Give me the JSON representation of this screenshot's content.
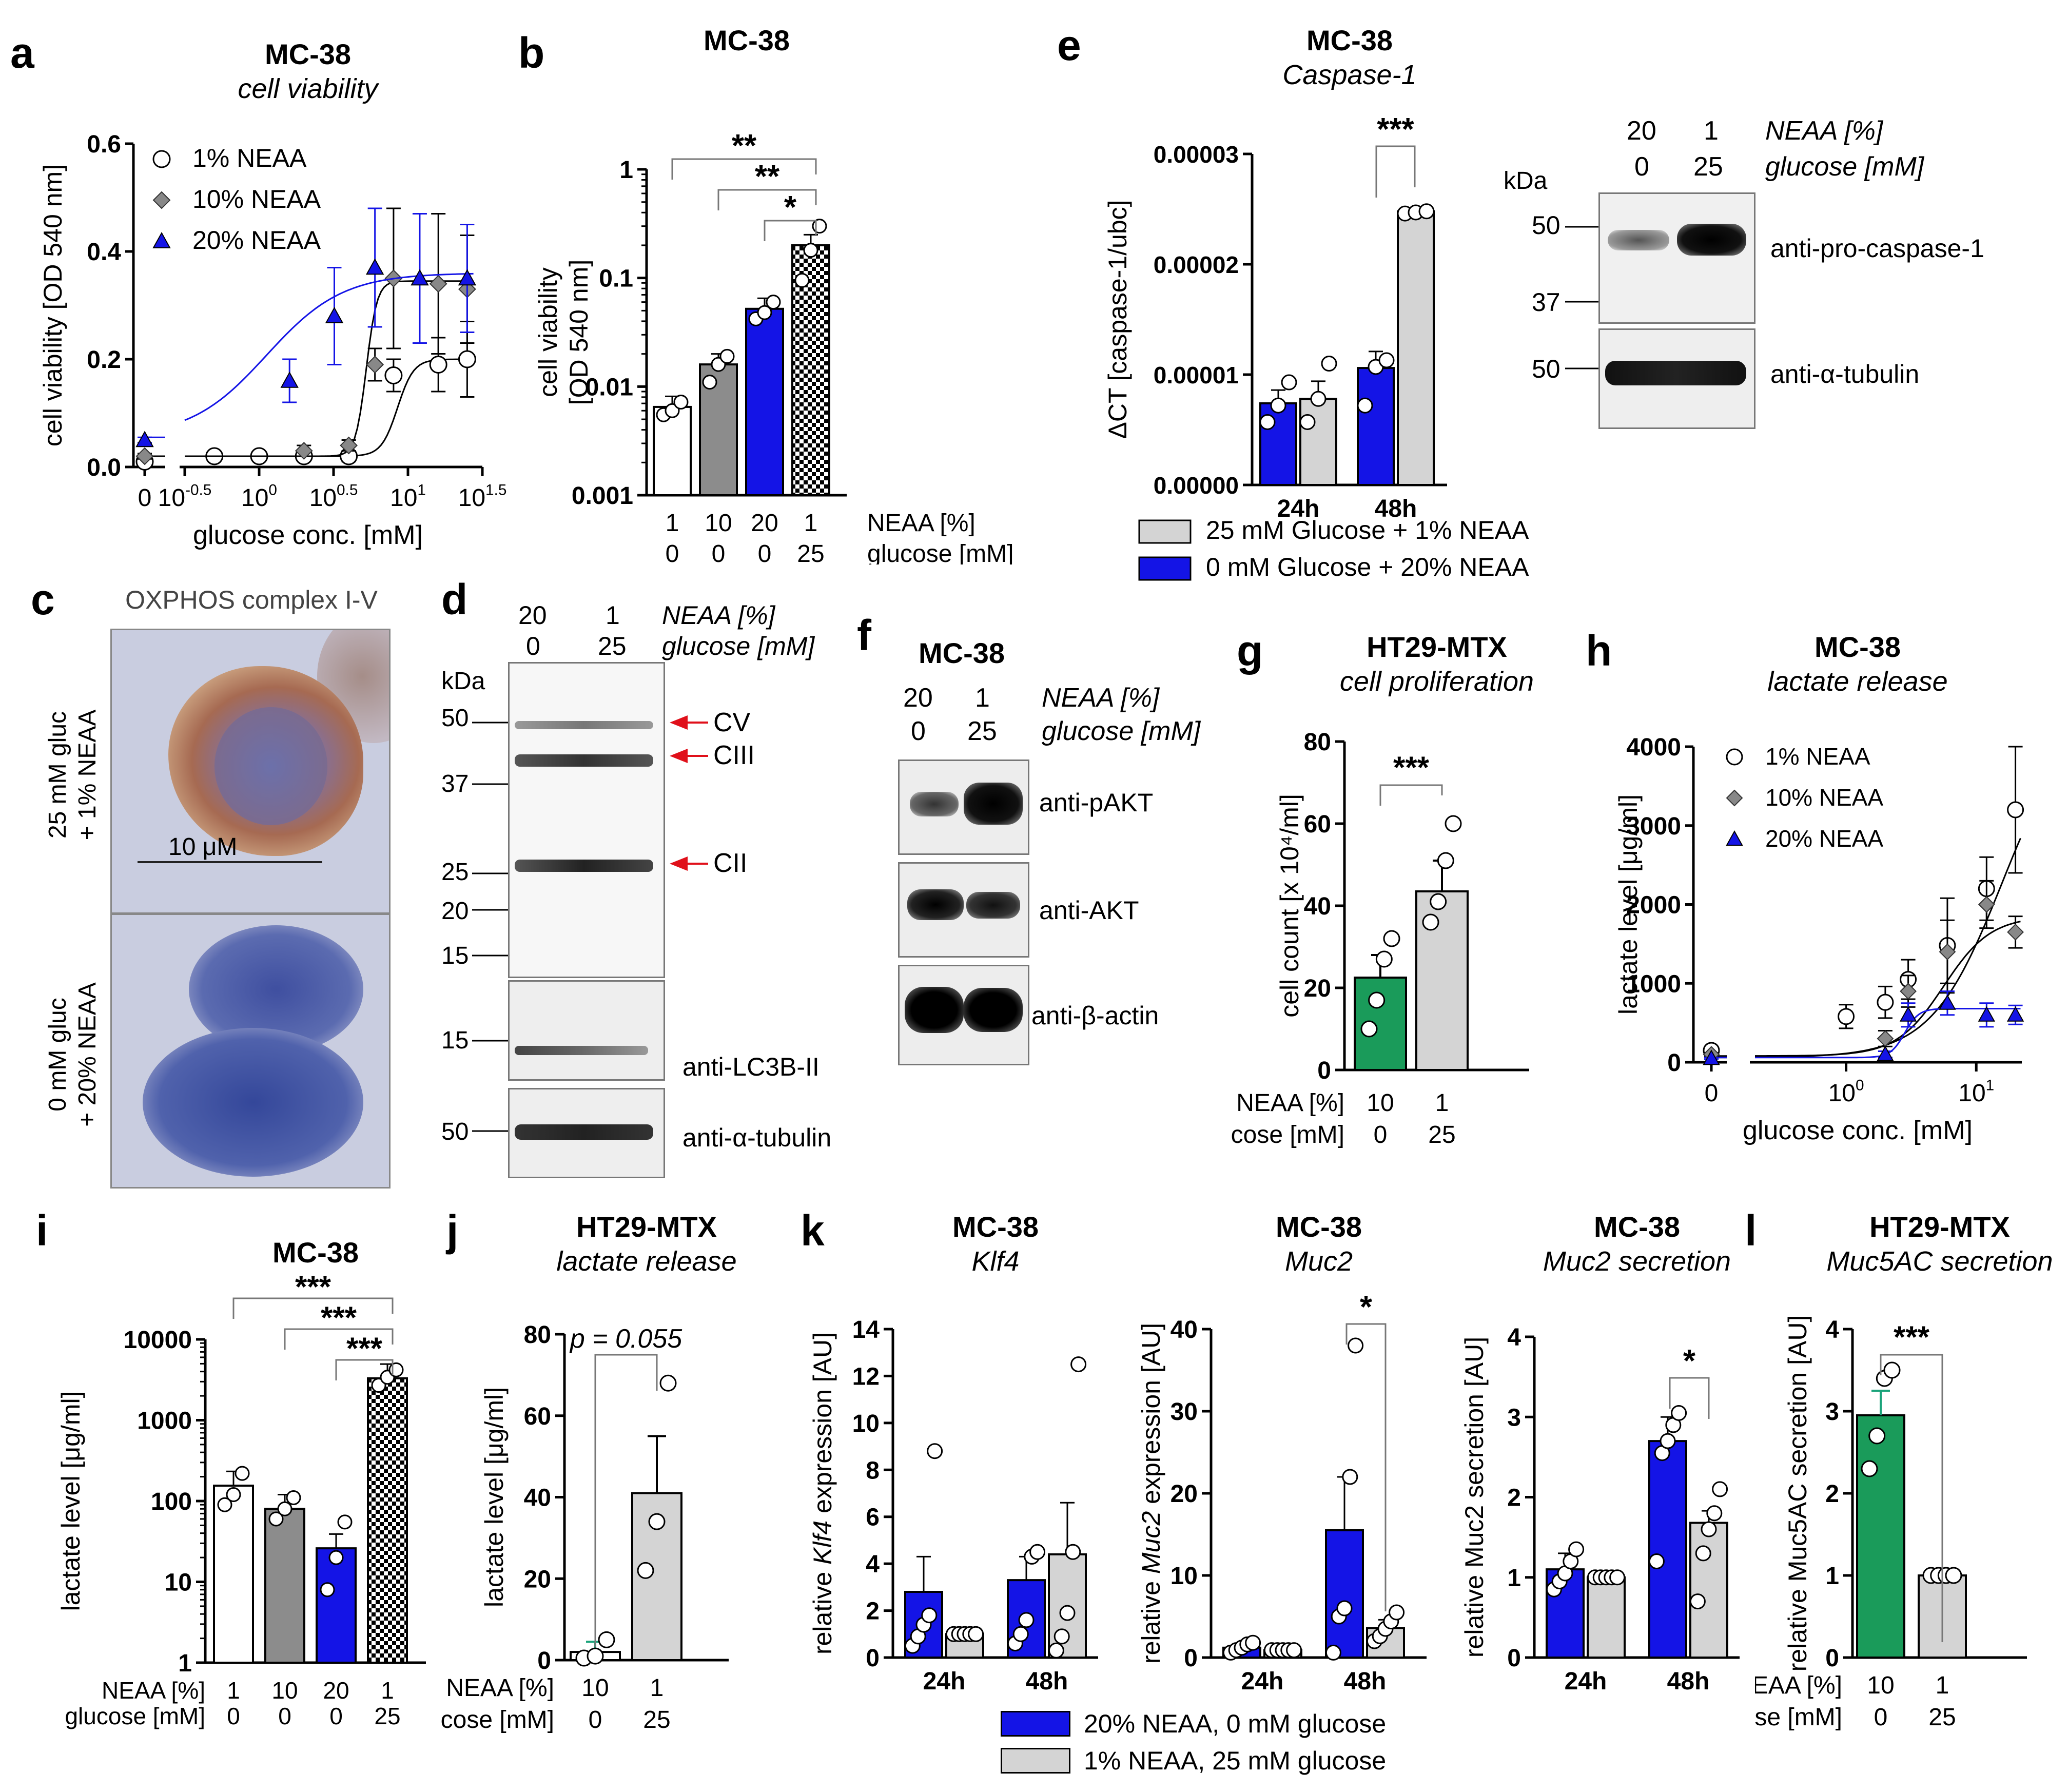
{
  "colors": {
    "white": "#ffffff",
    "gray": "#8c8c8c",
    "blue": "#1414e6",
    "light": "#d4d4d4",
    "green": "#1a9b5a",
    "teal": "#1aa37a",
    "red": "#e0101a",
    "axis": "#000000"
  },
  "labels": {
    "a": "a",
    "b": "b",
    "c": "c",
    "d": "d",
    "e": "e",
    "f": "f",
    "g": "g",
    "h": "h",
    "i": "i",
    "j": "j",
    "k": "k",
    "l": "l"
  },
  "chart_data": [
    {
      "id": "a",
      "type": "line",
      "title": "MC-38",
      "subtitle": "cell viability",
      "xlabel": "glucose conc. [mM]",
      "ylabel": "cell viability [OD 540 nm]",
      "xticks": [
        "0",
        "10^-0.5",
        "10^0",
        "10^0.5",
        "10^1",
        "10^1.5"
      ],
      "yticks": [
        "0.0",
        "0.2",
        "0.4",
        "0.6"
      ],
      "ylim": [
        0,
        0.6
      ],
      "xlim_log": [
        -0.5,
        1.5
      ],
      "series": [
        {
          "name": "1% NEAA",
          "marker": "circle",
          "x": [
            0,
            0.5,
            1,
            2,
            4,
            8,
            16,
            25
          ],
          "y": [
            0.01,
            0.02,
            0.02,
            0.02,
            0.02,
            0.17,
            0.19,
            0.2
          ],
          "err": [
            0.005,
            0.005,
            0.005,
            0.005,
            0.01,
            0.03,
            0.05,
            0.07
          ],
          "fit": {
            "bottom": 0.02,
            "top": 0.2,
            "logec50": 0.93,
            "hill": 8
          }
        },
        {
          "name": "10% NEAA",
          "marker": "diamond",
          "x": [
            0,
            2,
            4,
            6,
            8,
            16,
            25
          ],
          "y": [
            0.02,
            0.03,
            0.04,
            0.19,
            0.35,
            0.34,
            0.33
          ],
          "err": [
            0.005,
            0.01,
            0.01,
            0.03,
            0.13,
            0.13,
            0.1
          ],
          "fit": {
            "bottom": 0.02,
            "top": 0.345,
            "logec50": 0.72,
            "hill": 12
          }
        },
        {
          "name": "20% NEAA",
          "marker": "triangle",
          "x": [
            0,
            1.6,
            3.2,
            6,
            12,
            25
          ],
          "y": [
            0.05,
            0.16,
            0.28,
            0.37,
            0.35,
            0.35
          ],
          "err": [
            0.005,
            0.04,
            0.09,
            0.11,
            0.12,
            0.1
          ],
          "fit": {
            "bottom": 0.055,
            "top": 0.36,
            "logec50": 0.05,
            "hill": 1.7
          }
        }
      ]
    },
    {
      "id": "b",
      "type": "bar",
      "title": "MC-38",
      "ylabel": "cell viability [OD 540 nm]",
      "yscale": "log",
      "ylim": [
        0.001,
        1
      ],
      "yticks": [
        "0.001",
        "0.01",
        "0.1",
        "1"
      ],
      "row1_label": "NEAA [%]",
      "row2_label": "glucose [mM]",
      "row1": [
        "1",
        "10",
        "20",
        "1"
      ],
      "row2": [
        "0",
        "0",
        "0",
        "25"
      ],
      "values": [
        0.0065,
        0.016,
        0.052,
        0.2
      ],
      "points": [
        [
          0.0055,
          0.006,
          0.0072
        ],
        [
          0.011,
          0.016,
          0.019
        ],
        [
          0.042,
          0.048,
          0.06
        ],
        [
          0.095,
          0.18,
          0.3
        ]
      ],
      "significance": [
        "**",
        "**",
        "*"
      ]
    },
    {
      "id": "e",
      "type": "bar",
      "title": "MC-38",
      "subtitle": "Caspase-1",
      "ylabel": "ΔCT [caspase-1/ubc]",
      "ylim": [
        0,
        3e-05
      ],
      "yticks": [
        "0.00000",
        "0.00001",
        "0.00002",
        "0.00003"
      ],
      "categories": [
        "24h",
        "48h"
      ],
      "series": [
        {
          "name": "0 mM Glucose + 20% NEAA",
          "values": [
            7.4e-06,
            1.06e-05
          ]
        },
        {
          "name": "25 mM Glucose + 1% NEAA",
          "values": [
            7.8e-06,
            2.48e-05
          ]
        }
      ],
      "points": [
        [
          [
            5.7e-06,
            7.2e-06,
            9.3e-06
          ],
          [
            7.2e-06,
            1.07e-05,
            1.13e-05
          ]
        ],
        [
          [
            5.7e-06,
            7.8e-06,
            1.1e-05
          ],
          [
            2.46e-05,
            2.47e-05,
            2.48e-05
          ]
        ]
      ],
      "legend": [
        "25 mM Glucose + 1% NEAA",
        "0 mM Glucose + 20% NEAA"
      ],
      "significance": "***"
    },
    {
      "id": "g",
      "type": "bar",
      "title": "HT29-MTX",
      "subtitle": "cell proliferation",
      "ylabel": "cell count [x 10⁴/ml]",
      "ylim": [
        0,
        80
      ],
      "yticks": [
        "0",
        "20",
        "40",
        "60",
        "80"
      ],
      "row1_label": "NEAA [%]",
      "row2_label": "glucose [mM]",
      "row1": [
        "10",
        "1"
      ],
      "row2": [
        "0",
        "25"
      ],
      "values": [
        22.5,
        43.5
      ],
      "points": [
        [
          10,
          17,
          27,
          32
        ],
        [
          36,
          41,
          51,
          60
        ]
      ],
      "significance": "***"
    },
    {
      "id": "h",
      "type": "line",
      "title": "MC-38",
      "subtitle": "lactate release",
      "xlabel": "glucose conc. [mM]",
      "ylabel": "lactate level [μg/ml]",
      "ylim": [
        0,
        4000
      ],
      "yticks": [
        "0",
        "1000",
        "2000",
        "3000",
        "4000"
      ],
      "xticks": [
        "0",
        "10^0",
        "10^1"
      ],
      "series": [
        {
          "name": "1% NEAA",
          "marker": "circle",
          "x": [
            0,
            1,
            2,
            3,
            6,
            12,
            20
          ],
          "y": [
            150,
            580,
            760,
            1050,
            1480,
            2200,
            3200
          ],
          "err": [
            30,
            150,
            200,
            250,
            600,
            400,
            800
          ],
          "fit": {
            "bottom": 60,
            "top": 4500,
            "logec50": 1.2,
            "hill": 1.6
          }
        },
        {
          "name": "10% NEAA",
          "marker": "diamond",
          "x": [
            0,
            2,
            3,
            6,
            12,
            20
          ],
          "y": [
            100,
            300,
            900,
            1400,
            2000,
            1650
          ],
          "err": [
            20,
            100,
            200,
            400,
            300,
            200
          ],
          "fit": {
            "bottom": 80,
            "top": 1850,
            "logec50": 0.75,
            "hill": 2.4
          }
        },
        {
          "name": "20% NEAA",
          "marker": "triangle",
          "x": [
            0,
            2,
            3,
            6,
            12,
            20
          ],
          "y": [
            50,
            100,
            600,
            750,
            600,
            600
          ],
          "err": [
            10,
            40,
            150,
            150,
            150,
            120
          ],
          "fit": {
            "bottom": 60,
            "top": 680,
            "logec50": 0.45,
            "hill": 8
          }
        }
      ]
    },
    {
      "id": "i",
      "type": "bar",
      "title": "MC-38",
      "ylabel": "lactate level [μg/ml]",
      "yscale": "log",
      "ylim": [
        1,
        10000
      ],
      "yticks": [
        "1",
        "10",
        "100",
        "1000",
        "10000"
      ],
      "row1_label": "NEAA [%]",
      "row2_label": "glucose [mM]",
      "row1": [
        "1",
        "10",
        "20",
        "1"
      ],
      "row2": [
        "0",
        "0",
        "0",
        "25"
      ],
      "values": [
        155,
        80,
        26,
        3300
      ],
      "points": [
        [
          90,
          120,
          220
        ],
        [
          60,
          80,
          110
        ],
        [
          8,
          20,
          55
        ],
        [
          2700,
          3400,
          4200
        ]
      ],
      "significance": [
        "***",
        "***",
        "***"
      ]
    },
    {
      "id": "j",
      "type": "bar",
      "title": "HT29-MTX",
      "subtitle": "lactate release",
      "ylabel": "lactate level [μg/ml]",
      "ylim": [
        0,
        80
      ],
      "yticks": [
        "0",
        "20",
        "40",
        "60",
        "80"
      ],
      "row1_label": "NEAA [%]",
      "row2_label": "glucose [mM]",
      "row1": [
        "10",
        "1"
      ],
      "row2": [
        "0",
        "25"
      ],
      "values": [
        2,
        41
      ],
      "points": [
        [
          0.5,
          1,
          5
        ],
        [
          22,
          34,
          68
        ]
      ],
      "significance": "p = 0.055"
    },
    {
      "id": "k1",
      "type": "bar",
      "title": "MC-38",
      "subtitle": "Klf4",
      "ylabel": "relative Klf4 expression [AU]",
      "ylabel_pre": "relative ",
      "ylabel_italic": "Klf4",
      "ylabel_post": " expression [AU]",
      "ylim": [
        0,
        14
      ],
      "yticks": [
        "0",
        "2",
        "4",
        "6",
        "8",
        "10",
        "12",
        "14"
      ],
      "categories": [
        "24h",
        "48h"
      ],
      "series": [
        {
          "name": "20% NEAA, 0 mM glucose",
          "values": [
            2.8,
            3.3
          ]
        },
        {
          "name": "1% NEAA, 25 mM glucose",
          "values": [
            1.0,
            4.4
          ]
        }
      ],
      "points": [
        [
          [
            0.5,
            0.9,
            1.4,
            1.8,
            8.8
          ],
          [
            0.6,
            1.0,
            1.6,
            4.3,
            4.5
          ]
        ],
        [
          [
            1,
            1,
            1,
            1,
            1
          ],
          [
            0.3,
            0.9,
            1.9,
            4.5,
            12.5
          ]
        ]
      ]
    },
    {
      "id": "k2",
      "type": "bar",
      "title": "MC-38",
      "subtitle": "Muc2",
      "ylabel": "relative Muc2 expression [AU]",
      "ylabel_pre": "relative ",
      "ylabel_italic": "Muc2",
      "ylabel_post": " expression [AU]",
      "ylim": [
        0,
        40
      ],
      "yticks": [
        "0",
        "10",
        "20",
        "30",
        "40"
      ],
      "categories": [
        "24h",
        "48h"
      ],
      "series": [
        {
          "name": "20% NEAA, 0 mM glucose",
          "values": [
            1.2,
            15.5
          ]
        },
        {
          "name": "1% NEAA, 25 mM glucose",
          "values": [
            0.9,
            3.6
          ]
        }
      ],
      "points": [
        [
          [
            0.6,
            0.9,
            1.2,
            1.6,
            1.8
          ],
          [
            0.6,
            5,
            6,
            22,
            38
          ]
        ],
        [
          [
            0.9,
            0.9,
            0.9,
            0.9,
            0.9
          ],
          [
            2,
            2.6,
            3.5,
            4.4,
            5.5
          ]
        ]
      ],
      "significance": "*"
    },
    {
      "id": "k3",
      "type": "bar",
      "title": "MC-38",
      "subtitle": "Muc2 secretion",
      "ylabel": "relative Muc2 secretion  [AU]",
      "ylim": [
        0,
        4
      ],
      "yticks": [
        "0",
        "1",
        "2",
        "3",
        "4"
      ],
      "categories": [
        "24h",
        "48h"
      ],
      "series": [
        {
          "name": "20% NEAA, 0 mM glucose",
          "values": [
            1.1,
            2.7
          ]
        },
        {
          "name": "1% NEAA, 25 mM glucose",
          "values": [
            1.0,
            1.68
          ]
        }
      ],
      "points": [
        [
          [
            0.85,
            0.95,
            1.05,
            1.2,
            1.35
          ],
          [
            1.2,
            2.55,
            2.7,
            2.9,
            3.05
          ]
        ],
        [
          [
            1,
            1,
            1,
            1,
            1
          ],
          [
            0.7,
            1.3,
            1.6,
            1.8,
            2.1
          ]
        ]
      ],
      "significance": "*"
    },
    {
      "id": "l",
      "type": "bar",
      "title": "HT29-MTX",
      "subtitle": "Muc5AC secretion",
      "ylabel": "relative Muc5AC secretion [AU]",
      "ylim": [
        0,
        4
      ],
      "yticks": [
        "0",
        "1",
        "2",
        "3",
        "4"
      ],
      "row1_label": "NEAA [%]",
      "row2_label": "glucose [mM]",
      "row1": [
        "10",
        "1"
      ],
      "row2": [
        "0",
        "25"
      ],
      "values": [
        2.95,
        1.0
      ],
      "points": [
        [
          2.3,
          2.7,
          3.4,
          3.5
        ],
        [
          1,
          1,
          1,
          1
        ]
      ],
      "significance": "***"
    }
  ],
  "k_legend": [
    "20% NEAA, 0 mM glucose",
    "1% NEAA, 25 mM glucose"
  ],
  "panel_c": {
    "title": "OXPHOS complex I-V",
    "top_label_1": "25 mM gluc",
    "top_label_2": "+ 1% NEAA",
    "bottom_label_1": "0 mM gluc",
    "bottom_label_2": "+ 20% NEAA",
    "scale": "10 μM"
  },
  "panel_d": {
    "head_1": "20",
    "head_2": "1",
    "head_3": "NEAA [%]",
    "head_4": "0",
    "head_5": "25",
    "head_6": "glucose [mM]",
    "kda": "kDa",
    "markers": [
      "50",
      "37",
      "25",
      "20",
      "15"
    ],
    "bands": [
      "CV",
      "CIII",
      "CII"
    ],
    "lc3_marker": "15",
    "lc3": "anti-LC3B-II",
    "tub_marker": "50",
    "tub": "anti-α-tubulin"
  },
  "panel_e_blot": {
    "head_1": "20",
    "head_2": "1",
    "head_3": "NEAA [%]",
    "head_4": "0",
    "head_5": "25",
    "head_6": "glucose [mM]",
    "kda": "kDa",
    "m50": "50",
    "m37": "37",
    "pro": "anti-pro-caspase-1",
    "m50b": "50",
    "tub": "anti-α-tubulin"
  },
  "panel_f": {
    "title": "MC-38",
    "head_1": "20",
    "head_2": "1",
    "head_3": "NEAA [%]",
    "head_4": "0",
    "head_5": "25",
    "head_6": "glucose [mM]",
    "pakt": "anti-pAKT",
    "akt": "anti-AKT",
    "actin": "anti-β-actin"
  }
}
